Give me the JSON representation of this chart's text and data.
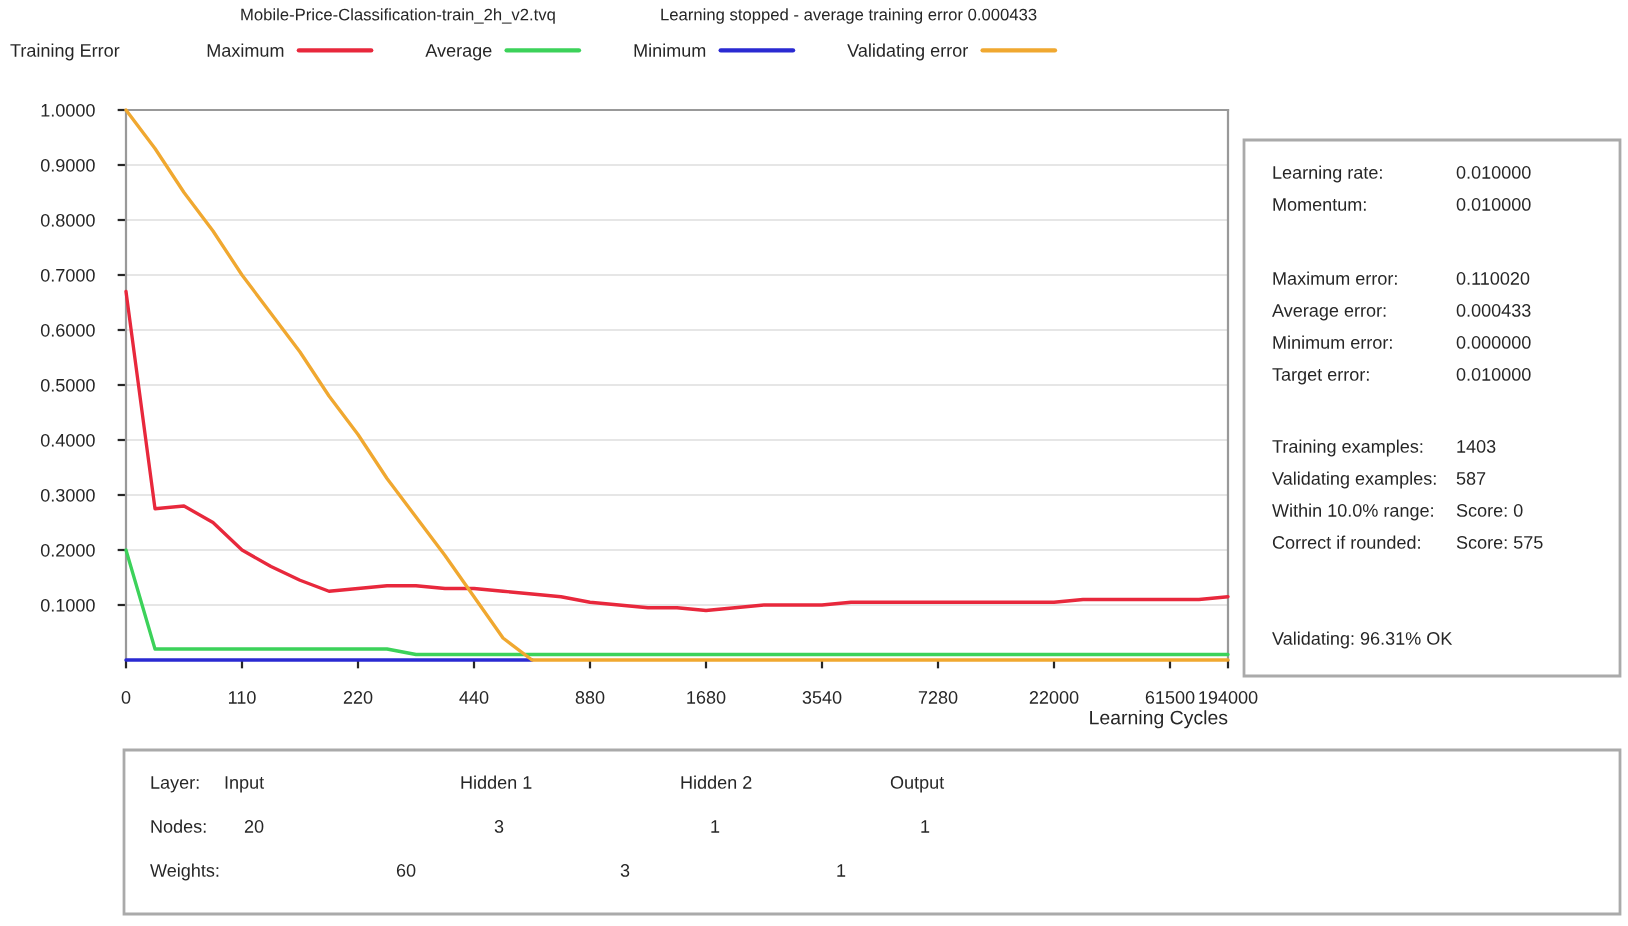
{
  "chart_data": {
    "type": "line",
    "title": "Mobile-Price-Classification-train_2h_v2.tvq",
    "subtitle": "Learning stopped - average training error 0.000433",
    "xlabel": "Learning Cycles",
    "legend_title": "Training Error",
    "legend": "top",
    "grid": "y",
    "marker": "none",
    "line_style": "solid",
    "categories": [
      "0",
      null,
      null,
      null,
      "110",
      null,
      null,
      null,
      "220",
      null,
      null,
      null,
      "440",
      null,
      null,
      null,
      "880",
      null,
      null,
      null,
      "1680",
      null,
      null,
      null,
      "3540",
      null,
      null,
      null,
      "7280",
      null,
      null,
      null,
      "22000",
      null,
      null,
      null,
      "61500",
      null,
      "194000"
    ],
    "ylim": [
      0,
      1.0
    ],
    "yticks": [
      {
        "value": 0.1,
        "label": "0.1000"
      },
      {
        "value": 0.2,
        "label": "0.2000"
      },
      {
        "value": 0.3,
        "label": "0.3000"
      },
      {
        "value": 0.4,
        "label": "0.4000"
      },
      {
        "value": 0.5,
        "label": "0.5000"
      },
      {
        "value": 0.6,
        "label": "0.6000"
      },
      {
        "value": 0.7,
        "label": "0.7000"
      },
      {
        "value": 0.8,
        "label": "0.8000"
      },
      {
        "value": 0.9,
        "label": "0.9000"
      },
      {
        "value": 1.0,
        "label": "1.0000"
      }
    ],
    "series": [
      {
        "name": "Maximum",
        "color": "#e8283c",
        "values": [
          0.67,
          0.275,
          0.28,
          0.25,
          0.2,
          0.17,
          0.145,
          0.125,
          0.13,
          0.135,
          0.135,
          0.13,
          0.13,
          0.125,
          0.12,
          0.115,
          0.105,
          0.1,
          0.095,
          0.095,
          0.09,
          0.095,
          0.1,
          0.1,
          0.1,
          0.105,
          0.105,
          0.105,
          0.105,
          0.105,
          0.105,
          0.105,
          0.105,
          0.11,
          0.11,
          0.11,
          0.11,
          0.11,
          0.115
        ]
      },
      {
        "name": "Average",
        "color": "#3cd25a",
        "values": [
          0.2,
          0.02,
          0.02,
          0.02,
          0.02,
          0.02,
          0.02,
          0.02,
          0.02,
          0.02,
          0.01,
          0.01,
          0.01,
          0.01,
          0.01,
          0.01,
          0.01,
          0.01,
          0.01,
          0.01,
          0.01,
          0.01,
          0.01,
          0.01,
          0.01,
          0.01,
          0.01,
          0.01,
          0.01,
          0.01,
          0.01,
          0.01,
          0.01,
          0.01,
          0.01,
          0.01,
          0.01,
          0.01,
          0.01
        ]
      },
      {
        "name": "Minimum",
        "color": "#2a2ad2",
        "values": [
          0,
          0,
          0,
          0,
          0,
          0,
          0,
          0,
          0,
          0,
          0,
          0,
          0,
          0,
          0,
          null,
          null,
          null,
          null,
          null,
          null,
          null,
          null,
          null,
          null,
          null,
          null,
          null,
          null,
          null,
          null,
          null,
          null,
          null,
          null,
          null,
          null,
          null,
          null
        ]
      },
      {
        "name": "Validating error",
        "color": "#f0a830",
        "values": [
          1.0,
          0.93,
          0.85,
          0.78,
          0.7,
          0.63,
          0.56,
          0.48,
          0.41,
          0.33,
          0.26,
          0.19,
          0.115,
          0.04,
          0,
          0,
          0,
          0,
          0,
          0,
          0,
          0,
          0,
          0,
          0,
          0,
          0,
          0,
          0,
          0,
          0,
          0,
          0,
          0,
          0,
          0,
          0,
          0,
          0
        ]
      }
    ],
    "annotations": [
      "Learning rate:",
      "0.010000",
      "Momentum:",
      "0.010000",
      "Maximum error:",
      "0.110020",
      "Average error:",
      "0.000433",
      "Minimum error:",
      "0.000000",
      "Target error:",
      "0.010000",
      "Training examples:",
      "1403",
      "Validating examples:",
      "587",
      "Within 10.0% range:",
      "Score: 0",
      "Correct if rounded:",
      "Score: 575",
      "Validating: 96.31% OK",
      "Layer:",
      "Input",
      "Hidden 1",
      "Hidden 2",
      "Output",
      "Nodes:",
      "20",
      "3",
      "1",
      "1",
      "Weights:",
      "60",
      "3",
      "1"
    ]
  }
}
